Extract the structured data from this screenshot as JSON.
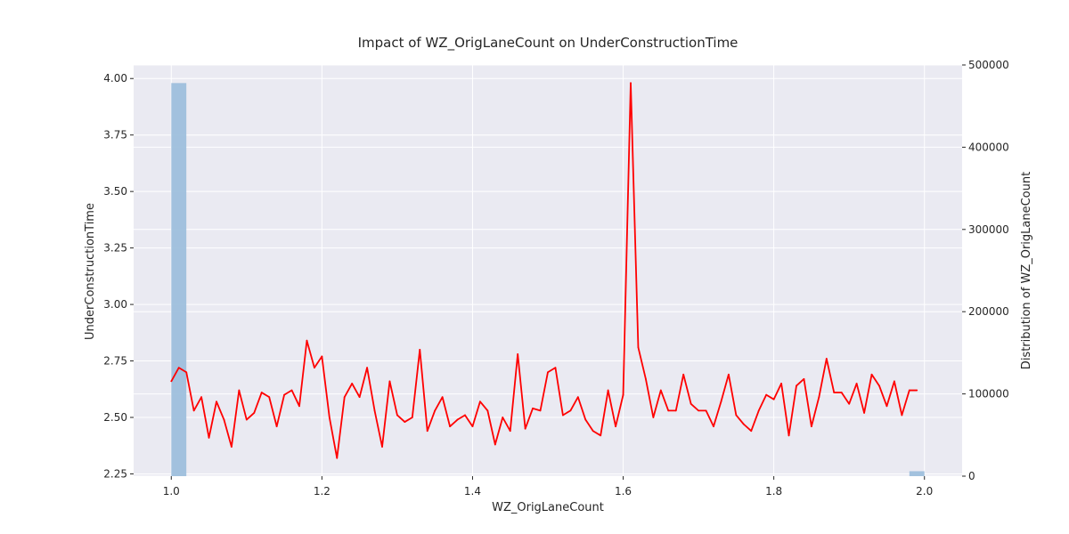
{
  "chart_data": {
    "type": "line",
    "title": "Impact of WZ_OrigLaneCount on UnderConstructionTime",
    "xlabel": "WZ_OrigLaneCount",
    "ylabel": "UnderConstructionTime",
    "y2label": "Distribution of WZ_OrigLaneCount",
    "xlim": [
      0.95,
      2.05
    ],
    "ylim": [
      2.24,
      4.06
    ],
    "y2lim": [
      0,
      500000
    ],
    "xticks": [
      "1.0",
      "1.2",
      "1.4",
      "1.6",
      "1.8",
      "2.0"
    ],
    "yticks": [
      "2.25",
      "2.50",
      "2.75",
      "3.00",
      "3.25",
      "3.50",
      "3.75",
      "4.00"
    ],
    "y2ticks": [
      "0",
      "100000",
      "200000",
      "300000",
      "400000",
      "500000"
    ],
    "grid": true,
    "background": "#eaeaf2",
    "line_color": "#ff0000",
    "hist_color": "#9ebfdc",
    "series": [
      {
        "x": [
          1.0,
          1.01,
          1.02,
          1.03,
          1.04,
          1.05,
          1.06,
          1.07,
          1.08,
          1.09,
          1.1,
          1.11,
          1.12,
          1.13,
          1.14,
          1.15,
          1.16,
          1.17,
          1.18,
          1.19,
          1.2,
          1.21,
          1.22,
          1.23,
          1.24,
          1.25,
          1.26,
          1.27,
          1.28,
          1.29,
          1.3,
          1.31,
          1.32,
          1.33,
          1.34,
          1.35,
          1.36,
          1.37,
          1.38,
          1.39,
          1.4,
          1.41,
          1.42,
          1.43,
          1.44,
          1.45,
          1.46,
          1.47,
          1.48,
          1.49,
          1.5,
          1.51,
          1.52,
          1.53,
          1.54,
          1.55,
          1.56,
          1.57,
          1.58,
          1.59,
          1.6,
          1.61,
          1.62,
          1.63,
          1.64,
          1.65,
          1.66,
          1.67,
          1.68,
          1.69,
          1.7,
          1.71,
          1.72,
          1.73,
          1.74,
          1.75,
          1.76,
          1.77,
          1.78,
          1.79,
          1.8,
          1.81,
          1.82,
          1.83,
          1.84,
          1.85,
          1.86,
          1.87,
          1.88,
          1.89,
          1.9,
          1.91,
          1.92,
          1.93,
          1.94,
          1.95,
          1.96,
          1.97,
          1.98,
          1.99
        ],
        "values": [
          2.66,
          2.72,
          2.7,
          2.53,
          2.59,
          2.41,
          2.57,
          2.49,
          2.37,
          2.62,
          2.49,
          2.52,
          2.61,
          2.59,
          2.46,
          2.6,
          2.62,
          2.55,
          2.84,
          2.72,
          2.77,
          2.5,
          2.32,
          2.59,
          2.65,
          2.59,
          2.72,
          2.53,
          2.37,
          2.66,
          2.51,
          2.48,
          2.5,
          2.8,
          2.44,
          2.53,
          2.59,
          2.46,
          2.49,
          2.51,
          2.46,
          2.57,
          2.53,
          2.38,
          2.5,
          2.44,
          2.78,
          2.45,
          2.54,
          2.53,
          2.7,
          2.72,
          2.51,
          2.53,
          2.59,
          2.49,
          2.44,
          2.42,
          2.62,
          2.46,
          2.6,
          3.98,
          2.81,
          2.67,
          2.5,
          2.62,
          2.53,
          2.53,
          2.69,
          2.56,
          2.53,
          2.53,
          2.46,
          2.57,
          2.69,
          2.51,
          2.47,
          2.44,
          2.53,
          2.6,
          2.58,
          2.65,
          2.42,
          2.64,
          2.67,
          2.46,
          2.59,
          2.76,
          2.61,
          2.61,
          2.56,
          2.65,
          2.52,
          2.69,
          2.64,
          2.55,
          2.66,
          2.51,
          2.62,
          2.62
        ]
      }
    ],
    "histogram": [
      {
        "x0": 1.0,
        "x1": 1.02,
        "count": 478000
      },
      {
        "x0": 1.98,
        "x1": 2.0,
        "count": 6000
      }
    ]
  }
}
